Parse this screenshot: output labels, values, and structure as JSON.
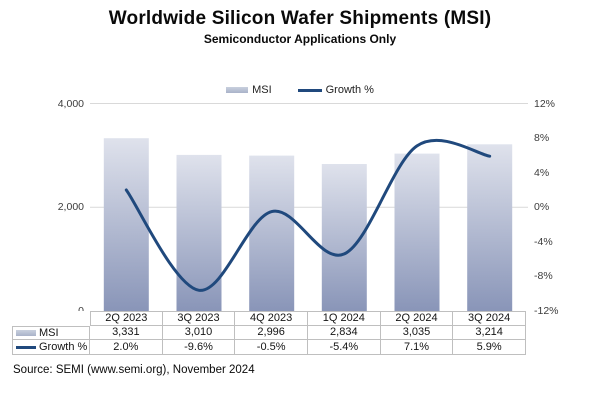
{
  "title": "Worldwide Silicon Wafer Shipments (MSI)",
  "subtitle": "Semiconductor Applications Only",
  "source": "Source: SEMI (www.semi.org), November 2024",
  "legend": {
    "items": [
      {
        "label": "MSI",
        "marker": "bar"
      },
      {
        "label": "Growth %",
        "marker": "line"
      }
    ]
  },
  "colors": {
    "bar_gradient_top": "#dfe2ec",
    "bar_gradient_bottom": "#8995b8",
    "line": "#20497d",
    "gridline": "#d9d9d9",
    "table_border": "#bfbfbf"
  },
  "chart_data": {
    "type": "combo-bar-line",
    "categories": [
      "2Q 2023",
      "3Q 2023",
      "4Q 2023",
      "1Q 2024",
      "2Q 2024",
      "3Q 2024"
    ],
    "series": [
      {
        "name": "MSI",
        "type": "bar",
        "axis": "left",
        "values": [
          3331,
          3010,
          2996,
          2834,
          3035,
          3214
        ]
      },
      {
        "name": "Growth %",
        "type": "line",
        "axis": "right",
        "smooth": true,
        "values": [
          2.0,
          -9.6,
          -0.5,
          -5.4,
          7.1,
          5.9
        ]
      }
    ],
    "left_axis": {
      "min": 0,
      "max": 4000,
      "tick_labels": [
        "4,000",
        "2,000",
        "0"
      ],
      "tick_values": [
        4000,
        2000,
        0
      ]
    },
    "right_axis": {
      "min": -12,
      "max": 12,
      "tick_labels": [
        "12%",
        "8%",
        "4%",
        "0%",
        "-4%",
        "-8%",
        "-12%"
      ],
      "tick_values": [
        12,
        8,
        4,
        0,
        -4,
        -8,
        -12
      ]
    },
    "grid": true,
    "legend_position": "top",
    "title": "Worldwide Silicon Wafer Shipments (MSI)",
    "subtitle": "Semiconductor Applications Only"
  },
  "table": {
    "columns": [
      "2Q 2023",
      "3Q 2023",
      "4Q 2023",
      "1Q 2024",
      "2Q 2024",
      "3Q 2024"
    ],
    "rows": [
      {
        "label": "MSI",
        "marker": "bar",
        "cells": [
          "3,331",
          "3,010",
          "2,996",
          "2,834",
          "3,035",
          "3,214"
        ]
      },
      {
        "label": "Growth %",
        "marker": "line",
        "cells": [
          "2.0%",
          "-9.6%",
          "-0.5%",
          "-5.4%",
          "7.1%",
          "5.9%"
        ]
      }
    ]
  }
}
